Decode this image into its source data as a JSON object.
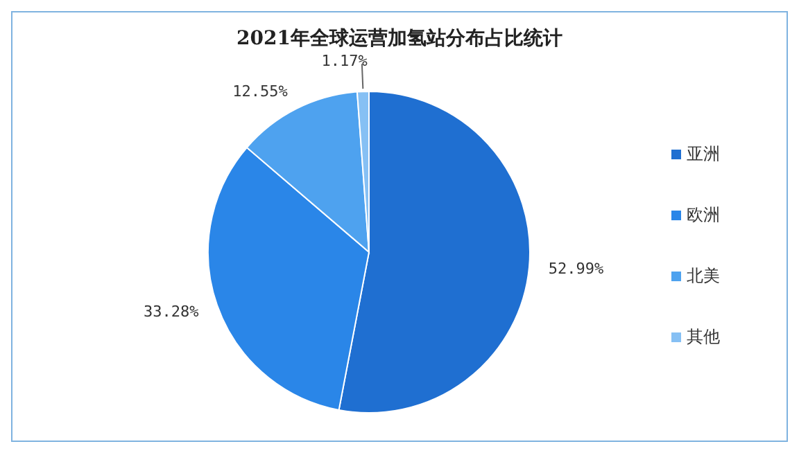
{
  "chart_data": {
    "type": "pie",
    "title": "2021年全球运营加氢站分布占比统计",
    "categories": [
      "亚洲",
      "欧洲",
      "北美",
      "其他"
    ],
    "values": [
      52.99,
      33.28,
      12.55,
      1.17
    ],
    "value_labels": [
      "52.99%",
      "33.28%",
      "12.55%",
      "1.17%"
    ],
    "colors": [
      "#1f6fd1",
      "#2a86e8",
      "#4ea2ef",
      "#86c0f4"
    ],
    "legend": "right"
  }
}
